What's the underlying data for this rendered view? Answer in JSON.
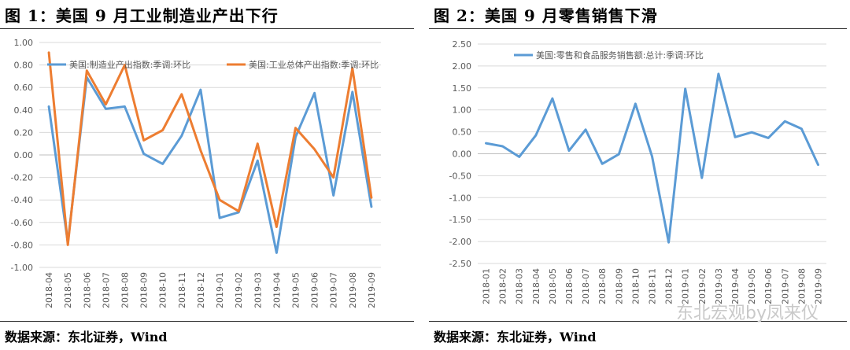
{
  "panels": [
    {
      "title": "图 1：美国 9 月工业制造业产出下行",
      "source": "数据来源：东北证券，Wind"
    },
    {
      "title": "图 2：美国 9 月零售销售下滑",
      "source": "数据来源：东北证券，Wind"
    }
  ],
  "watermark": "东北宏观by凤来仪",
  "chart_data": [
    {
      "type": "line",
      "title": "",
      "xlabel": "",
      "ylabel": "",
      "ylim": [
        -1.0,
        1.0
      ],
      "yticks": [
        "1.00",
        "0.80",
        "0.60",
        "0.40",
        "0.20",
        "0.00",
        "-0.20",
        "-0.40",
        "-0.60",
        "-0.80",
        "-1.00"
      ],
      "grid": true,
      "legend": "top",
      "categories": [
        "2018-04",
        "2018-05",
        "2018-06",
        "2018-07",
        "2018-08",
        "2018-09",
        "2018-10",
        "2018-11",
        "2018-12",
        "2019-01",
        "2019-02",
        "2019-03",
        "2019-04",
        "2019-05",
        "2019-06",
        "2019-07",
        "2019-08",
        "2019-09"
      ],
      "series": [
        {
          "name": "美国:制造业产出指数:季调:环比",
          "color": "#5b9bd5",
          "values": [
            0.43,
            -0.78,
            0.69,
            0.41,
            0.43,
            0.01,
            -0.08,
            0.17,
            0.58,
            -0.56,
            -0.51,
            -0.05,
            -0.87,
            0.16,
            0.55,
            -0.36,
            0.56,
            -0.46
          ]
        },
        {
          "name": "美国:工业总体产出指数:季调:环比",
          "color": "#ed7d31",
          "values": [
            0.91,
            -0.8,
            0.75,
            0.45,
            0.8,
            0.13,
            0.22,
            0.54,
            0.04,
            -0.4,
            -0.5,
            0.1,
            -0.64,
            0.24,
            0.05,
            -0.2,
            0.77,
            -0.38
          ]
        }
      ]
    },
    {
      "type": "line",
      "title": "",
      "xlabel": "",
      "ylabel": "",
      "ylim": [
        -2.5,
        2.5
      ],
      "yticks": [
        "2.50",
        "2.00",
        "1.50",
        "1.00",
        "0.50",
        "0.00",
        "-0.50",
        "-1.00",
        "-1.50",
        "-2.00",
        "-2.50"
      ],
      "grid": true,
      "legend": "top",
      "categories": [
        "2018-01",
        "2018-02",
        "2018-03",
        "2018-04",
        "2018-05",
        "2018-06",
        "2018-07",
        "2018-08",
        "2018-09",
        "2018-10",
        "2018-11",
        "2018-12",
        "2019-01",
        "2019-02",
        "2019-03",
        "2019-04",
        "2019-05",
        "2019-06",
        "2019-07",
        "2019-08",
        "2019-09"
      ],
      "series": [
        {
          "name": "美国:零售和食品服务销售额:总计:季调:环比",
          "color": "#5b9bd5",
          "values": [
            0.24,
            0.17,
            -0.07,
            0.42,
            1.26,
            0.07,
            0.55,
            -0.23,
            -0.01,
            1.14,
            -0.06,
            -2.02,
            1.48,
            -0.55,
            1.82,
            0.38,
            0.49,
            0.36,
            0.74,
            0.57,
            -0.25
          ]
        }
      ]
    }
  ]
}
